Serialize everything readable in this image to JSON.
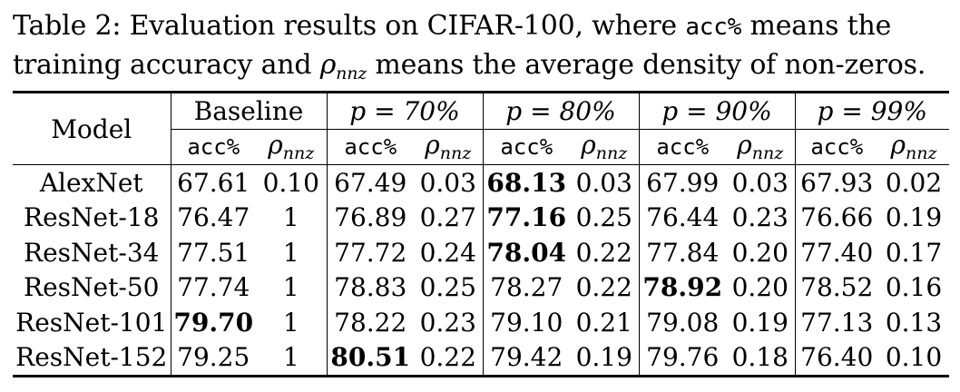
{
  "caption": {
    "line1_prefix": "Table 2: Evaluation results on CIFAR-100, where ",
    "line1_code": "acc%",
    "line1_suffix": " means the",
    "line2_prefix": "training accuracy and ",
    "line2_rho": "ρ",
    "line2_sub": "nnz",
    "line2_suffix": " means the average density of non-zeros."
  },
  "headers": {
    "model": "Model",
    "groups": [
      "Baseline",
      "p = 70%",
      "p = 80%",
      "p = 90%",
      "p = 99%"
    ],
    "acc_label": "acc%",
    "rho_label": "ρ",
    "rho_sub": "nnz"
  },
  "rows": [
    {
      "model": "AlexNet",
      "vals": [
        "67.61",
        "0.10",
        "67.49",
        "0.03",
        "68.13",
        "0.03",
        "67.99",
        "0.03",
        "67.93",
        "0.02"
      ],
      "bold": [
        4
      ]
    },
    {
      "model": "ResNet-18",
      "vals": [
        "76.47",
        "1",
        "76.89",
        "0.27",
        "77.16",
        "0.25",
        "76.44",
        "0.23",
        "76.66",
        "0.19"
      ],
      "bold": [
        4
      ]
    },
    {
      "model": "ResNet-34",
      "vals": [
        "77.51",
        "1",
        "77.72",
        "0.24",
        "78.04",
        "0.22",
        "77.84",
        "0.20",
        "77.40",
        "0.17"
      ],
      "bold": [
        4
      ]
    },
    {
      "model": "ResNet-50",
      "vals": [
        "77.74",
        "1",
        "78.83",
        "0.25",
        "78.27",
        "0.22",
        "78.92",
        "0.20",
        "78.52",
        "0.16"
      ],
      "bold": [
        6
      ]
    },
    {
      "model": "ResNet-101",
      "vals": [
        "79.70",
        "1",
        "78.22",
        "0.23",
        "79.10",
        "0.21",
        "79.08",
        "0.19",
        "77.13",
        "0.13"
      ],
      "bold": [
        0
      ]
    },
    {
      "model": "ResNet-152",
      "vals": [
        "79.25",
        "1",
        "80.51",
        "0.22",
        "79.42",
        "0.19",
        "79.76",
        "0.18",
        "76.40",
        "0.10"
      ],
      "bold": [
        2
      ]
    }
  ]
}
